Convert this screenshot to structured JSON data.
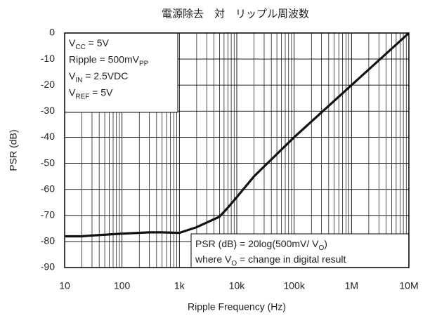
{
  "chart_data": {
    "type": "line",
    "title": "電源除去　対　リップル周波数",
    "x_label": "Ripple Frequency (Hz)",
    "y_label": "PSR (dB)",
    "x": [
      10,
      20,
      30,
      100,
      300,
      500,
      1000,
      2000,
      5000,
      7000,
      10000,
      20000,
      100000,
      1000000,
      10000000
    ],
    "values": [
      -78,
      -78,
      -77.7,
      -77,
      -76.5,
      -76.5,
      -76.7,
      -74.5,
      -70.5,
      -67,
      -63,
      -55,
      -40,
      -20,
      0
    ],
    "color": "#111111",
    "xscale": "log",
    "xlim": [
      10,
      10000000
    ],
    "ylim": [
      -90,
      0
    ],
    "xticks": [
      10,
      100,
      {
        "value": 1000,
        "label": "1k"
      },
      {
        "value": 10000,
        "label": "10k"
      },
      {
        "value": 100000,
        "label": "100k"
      },
      {
        "value": 1000000,
        "label": "1M"
      },
      {
        "value": 10000000,
        "label": "10M"
      }
    ],
    "yticks": [
      -90,
      -80,
      -70,
      -60,
      -50,
      -40,
      -30,
      -20,
      -10,
      0
    ],
    "grid": true,
    "annotations": [
      {
        "position": "top-left",
        "lines": [
          [
            {
              "text": "V"
            },
            {
              "text": "CC",
              "sub": true
            },
            {
              "text": " = 5V"
            }
          ],
          [
            {
              "text": "Ripple = 500mV"
            },
            {
              "text": "PP",
              "sub": true
            }
          ],
          [
            {
              "text": "V"
            },
            {
              "text": "IN",
              "sub": true
            },
            {
              "text": " = 2.5VDC"
            }
          ],
          [
            {
              "text": "V"
            },
            {
              "text": "REF",
              "sub": true
            },
            {
              "text": " = 5V"
            }
          ]
        ]
      },
      {
        "position": "bottom-right",
        "lines": [
          [
            {
              "text": "PSR (dB) = 20log(500mV/  V"
            },
            {
              "text": "O",
              "sub": true
            },
            {
              "text": ")"
            }
          ],
          [
            {
              "text": "where   V"
            },
            {
              "text": "O",
              "sub": true
            },
            {
              "text": " = change in digital result"
            }
          ]
        ]
      }
    ]
  }
}
